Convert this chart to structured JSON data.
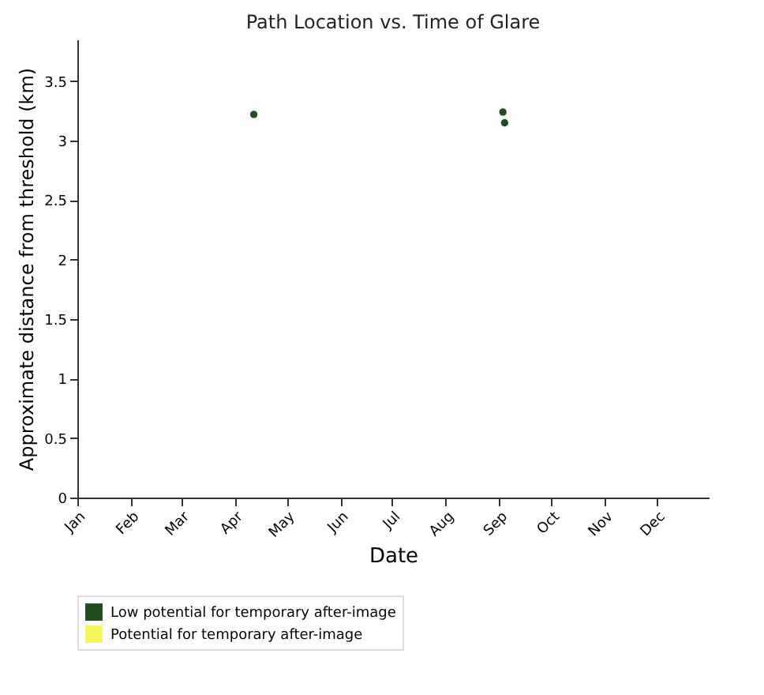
{
  "chart_data": {
    "type": "scatter",
    "title": "Path Location vs. Time of Glare",
    "xlabel": "Date",
    "ylabel": "Approximate distance from threshold (km)",
    "series": [
      {
        "name": "Low potential for temporary after-image",
        "color": "#1f4d1f",
        "x": [
          "--04-12",
          "--09-03",
          "--09-04"
        ],
        "values": [
          3.22,
          3.24,
          3.15
        ]
      },
      {
        "name": "Potential for temporary after-image",
        "color": "#f5f55a"
      }
    ],
    "xlim": [
      "--01-01",
      "--12-31"
    ],
    "xticks": [
      {
        "value": "--01-01",
        "label": "Jan"
      },
      {
        "value": "--02-01",
        "label": "Feb"
      },
      {
        "value": "--03-01",
        "label": "Mar"
      },
      {
        "value": "--04-01",
        "label": "Apr"
      },
      {
        "value": "--05-01",
        "label": "May"
      },
      {
        "value": "--06-01",
        "label": "Jun"
      },
      {
        "value": "--07-01",
        "label": "Jul"
      },
      {
        "value": "--08-01",
        "label": "Aug"
      },
      {
        "value": "--09-01",
        "label": "Sep"
      },
      {
        "value": "--10-01",
        "label": "Oct"
      },
      {
        "value": "--11-01",
        "label": "Nov"
      },
      {
        "value": "--12-01",
        "label": "Dec"
      }
    ],
    "ylim": [
      0,
      3.85
    ],
    "yticks": [
      0,
      0.5,
      1,
      1.5,
      2,
      2.5,
      3,
      3.5
    ],
    "marker": "circle",
    "legend": "bottom",
    "grid": false
  }
}
